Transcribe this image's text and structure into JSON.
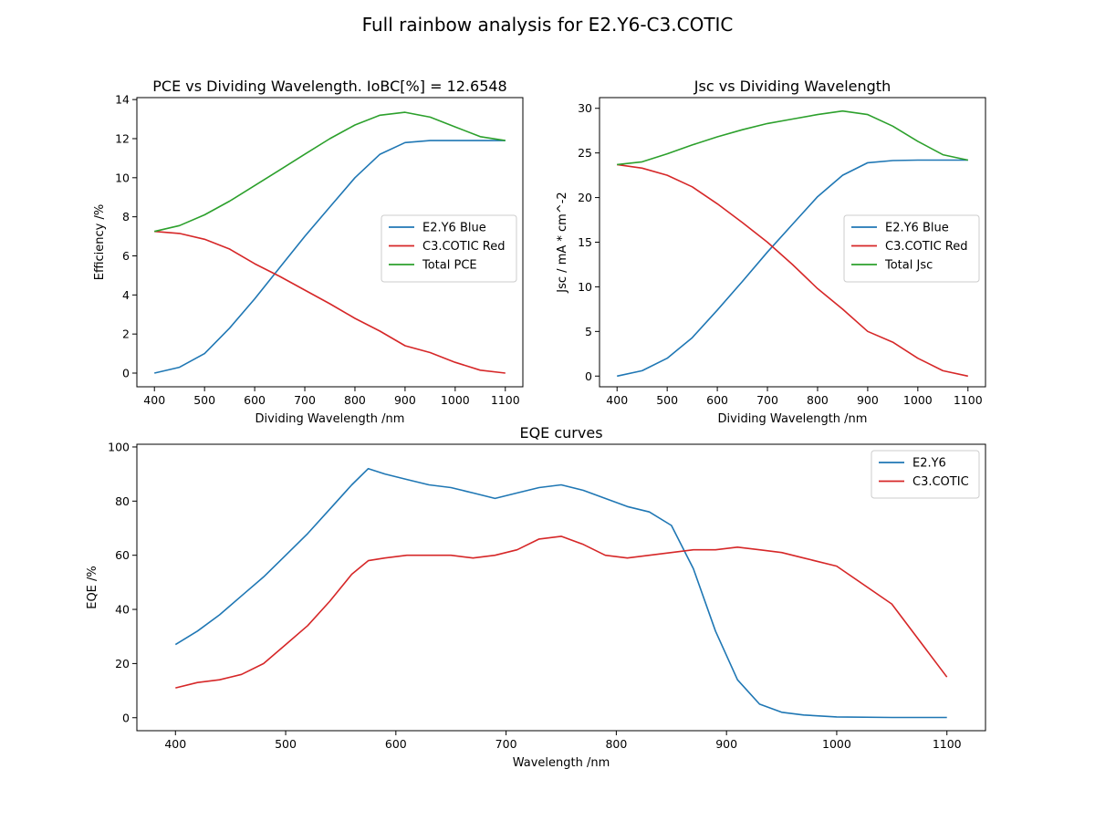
{
  "figure": {
    "title": "Full rainbow analysis for E2.Y6-C3.COTIC"
  },
  "colors": {
    "blue": "#1f77b4",
    "red": "#d62728",
    "green": "#2ca02c"
  },
  "chart_data": [
    {
      "id": "pce",
      "type": "line",
      "title": "PCE vs Dividing Wavelength. IoBC[%] = 12.6548",
      "xlabel": "Dividing Wavelength /nm",
      "ylabel": "Efficiency /%",
      "xlim": [
        365,
        1135
      ],
      "ylim": [
        -0.7,
        14.1
      ],
      "xticks": [
        400,
        500,
        600,
        700,
        800,
        900,
        1000,
        1100
      ],
      "yticks": [
        0,
        2,
        4,
        6,
        8,
        10,
        12,
        14
      ],
      "grid": false,
      "legend_position": "center-right",
      "x": [
        400,
        450,
        500,
        550,
        600,
        650,
        700,
        750,
        800,
        850,
        900,
        950,
        1000,
        1050,
        1100
      ],
      "series": [
        {
          "name": "E2.Y6 Blue",
          "color": "blue",
          "values": [
            0.0,
            0.3,
            1.0,
            2.3,
            3.8,
            5.4,
            7.0,
            8.5,
            10.0,
            11.2,
            11.8,
            11.9,
            11.9,
            11.9,
            11.9
          ]
        },
        {
          "name": "C3.COTIC Red",
          "color": "red",
          "values": [
            7.25,
            7.15,
            6.85,
            6.35,
            5.6,
            4.95,
            4.25,
            3.55,
            2.8,
            2.15,
            1.4,
            1.05,
            0.55,
            0.15,
            0.0
          ]
        },
        {
          "name": "Total PCE",
          "color": "green",
          "values": [
            7.25,
            7.55,
            8.1,
            8.8,
            9.6,
            10.4,
            11.2,
            12.0,
            12.7,
            13.2,
            13.35,
            13.1,
            12.6,
            12.1,
            11.9
          ]
        }
      ]
    },
    {
      "id": "jsc",
      "type": "line",
      "title": "Jsc vs Dividing Wavelength",
      "xlabel": "Dividing Wavelength /nm",
      "ylabel": "Jsc / mA * cm^-2",
      "xlim": [
        365,
        1135
      ],
      "ylim": [
        -1.2,
        31.2
      ],
      "xticks": [
        400,
        500,
        600,
        700,
        800,
        900,
        1000,
        1100
      ],
      "yticks": [
        0,
        5,
        10,
        15,
        20,
        25,
        30
      ],
      "grid": false,
      "legend_position": "center-right",
      "x": [
        400,
        450,
        500,
        550,
        600,
        650,
        700,
        750,
        800,
        850,
        900,
        950,
        1000,
        1050,
        1100
      ],
      "series": [
        {
          "name": "E2.Y6 Blue",
          "color": "blue",
          "values": [
            0.0,
            0.6,
            2.0,
            4.3,
            7.4,
            10.6,
            13.9,
            17.0,
            20.1,
            22.5,
            23.9,
            24.15,
            24.2,
            24.2,
            24.2
          ]
        },
        {
          "name": "C3.COTIC Red",
          "color": "red",
          "values": [
            23.7,
            23.3,
            22.5,
            21.2,
            19.3,
            17.2,
            15.0,
            12.5,
            9.8,
            7.5,
            5.0,
            3.8,
            2.0,
            0.6,
            0.0
          ]
        },
        {
          "name": "Total Jsc",
          "color": "green",
          "values": [
            23.7,
            24.0,
            24.9,
            25.9,
            26.8,
            27.6,
            28.3,
            28.8,
            29.3,
            29.7,
            29.3,
            28.0,
            26.3,
            24.8,
            24.2
          ]
        }
      ]
    },
    {
      "id": "eqe",
      "type": "line",
      "title": "EQE curves",
      "xlabel": "Wavelength /nm",
      "ylabel": "EQE /%",
      "xlim": [
        365,
        1135
      ],
      "ylim": [
        -4.8,
        101
      ],
      "xticks": [
        400,
        500,
        600,
        700,
        800,
        900,
        1000,
        1100
      ],
      "yticks": [
        0,
        20,
        40,
        60,
        80,
        100
      ],
      "grid": false,
      "legend_position": "top-right",
      "x": [
        400,
        420,
        440,
        460,
        480,
        500,
        520,
        540,
        560,
        575,
        590,
        610,
        630,
        650,
        670,
        690,
        710,
        730,
        750,
        770,
        790,
        810,
        830,
        850,
        870,
        890,
        910,
        930,
        950,
        970,
        1000,
        1050,
        1100
      ],
      "series": [
        {
          "name": "E2.Y6",
          "color": "blue",
          "values": [
            27,
            32,
            38,
            45,
            52,
            60,
            68,
            77,
            86,
            92,
            90,
            88,
            86,
            85,
            83,
            81,
            83,
            85,
            86,
            84,
            81,
            78,
            76,
            71,
            55,
            32,
            14,
            5,
            2,
            1,
            0.3,
            0.1,
            0.1
          ]
        },
        {
          "name": "C3.COTIC",
          "color": "red",
          "values": [
            11,
            13,
            14,
            16,
            20,
            27,
            34,
            43,
            53,
            58,
            59,
            60,
            60,
            60,
            59,
            60,
            62,
            66,
            67,
            64,
            60,
            59,
            60,
            61,
            62,
            62,
            63,
            62,
            61,
            59,
            56,
            42,
            15
          ]
        }
      ]
    }
  ]
}
